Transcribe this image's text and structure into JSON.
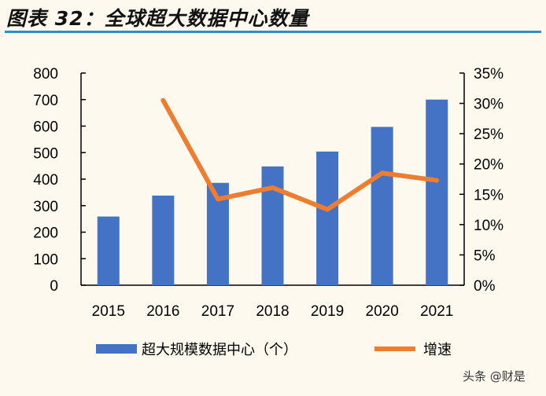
{
  "title": "图表 32：全球超大数据中心数量",
  "watermark": "头条 @财是",
  "colors": {
    "bar": "#4472c4",
    "line": "#ed7d31",
    "rule": "#2e8fc0",
    "background": "#fdf9ef"
  },
  "chart_data": {
    "type": "bar+line",
    "categories": [
      "2015",
      "2016",
      "2017",
      "2018",
      "2019",
      "2020",
      "2021"
    ],
    "series": [
      {
        "name": "超大规模数据中心（个）",
        "type": "bar",
        "axis": "left",
        "values": [
          259,
          338,
          386,
          448,
          504,
          597,
          700
        ]
      },
      {
        "name": "增速",
        "type": "line",
        "axis": "right",
        "values": [
          null,
          30.5,
          14.2,
          16.1,
          12.5,
          18.5,
          17.3
        ]
      }
    ],
    "left_axis": {
      "ylim": [
        0,
        800
      ],
      "ticks": [
        "0",
        "100",
        "200",
        "300",
        "400",
        "500",
        "600",
        "700",
        "800"
      ]
    },
    "right_axis": {
      "ylim": [
        0,
        35
      ],
      "ticks": [
        "0%",
        "5%",
        "10%",
        "15%",
        "20%",
        "25%",
        "30%",
        "35%"
      ]
    },
    "legend_position": "bottom",
    "grid": false
  }
}
